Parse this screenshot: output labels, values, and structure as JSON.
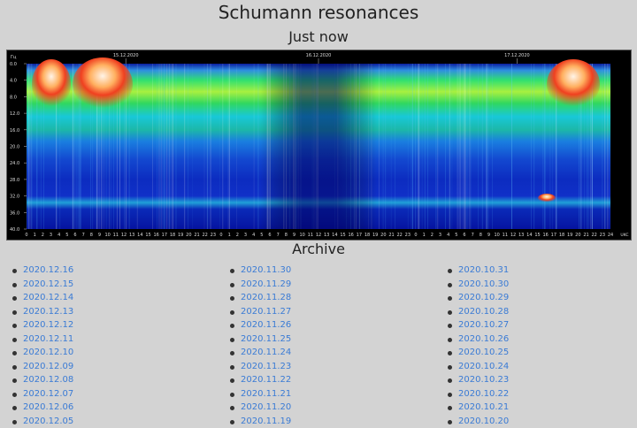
{
  "title": "Schumann resonances",
  "subtitle": "Just now",
  "spectrogram": {
    "y_axis_unit": "Гц",
    "x_axis_unit": "UKC",
    "y_ticks": [
      "0.0",
      "4.0",
      "8.0",
      "12.0",
      "16.0",
      "20.0",
      "24.0",
      "28.0",
      "32.0",
      "36.0",
      "40.0"
    ],
    "date_labels": [
      "15.12.2020",
      "16.12.2020",
      "17.12.2020"
    ],
    "hour_ticks": [
      "0",
      "1",
      "2",
      "3",
      "4",
      "5",
      "6",
      "7",
      "8",
      "9",
      "10",
      "11",
      "12",
      "13",
      "14",
      "15",
      "16",
      "17",
      "18",
      "19",
      "20",
      "21",
      "22",
      "23",
      "0",
      "1",
      "2",
      "3",
      "4",
      "5",
      "6",
      "7",
      "8",
      "9",
      "10",
      "11",
      "12",
      "13",
      "14",
      "15",
      "16",
      "17",
      "18",
      "19",
      "20",
      "21",
      "22",
      "23",
      "0",
      "1",
      "2",
      "3",
      "4",
      "5",
      "6",
      "7",
      "8",
      "9",
      "10",
      "11",
      "12",
      "13",
      "14",
      "15",
      "16",
      "17",
      "18",
      "19",
      "20",
      "21",
      "22",
      "23",
      "24"
    ],
    "colors": {
      "background": "#000000",
      "low": "#0000b4",
      "mid": "#00d0ff",
      "high": "#ff3c00",
      "peak": "#fff4e8"
    }
  },
  "archive": {
    "title": "Archive",
    "columns": [
      [
        "2020.12.16",
        "2020.12.15",
        "2020.12.14",
        "2020.12.13",
        "2020.12.12",
        "2020.12.11",
        "2020.12.10",
        "2020.12.09",
        "2020.12.08",
        "2020.12.07",
        "2020.12.06",
        "2020.12.05"
      ],
      [
        "2020.11.30",
        "2020.11.29",
        "2020.11.28",
        "2020.11.27",
        "2020.11.26",
        "2020.11.25",
        "2020.11.24",
        "2020.11.23",
        "2020.11.22",
        "2020.11.21",
        "2020.11.20",
        "2020.11.19"
      ],
      [
        "2020.10.31",
        "2020.10.30",
        "2020.10.29",
        "2020.10.28",
        "2020.10.27",
        "2020.10.26",
        "2020.10.25",
        "2020.10.24",
        "2020.10.23",
        "2020.10.22",
        "2020.10.21",
        "2020.10.20"
      ]
    ]
  }
}
